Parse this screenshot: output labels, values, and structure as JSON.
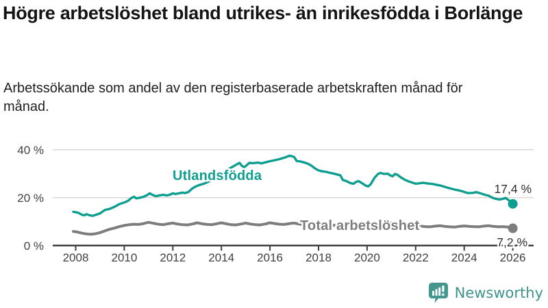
{
  "header": {
    "title": "Högre arbetslöshet bland utrikes- än inrikesfödda i Borlänge",
    "subtitle": "Arbetssökande som andel av den registerbaserade arbetskraften månad för månad."
  },
  "chart_data": {
    "type": "line",
    "unit": "%",
    "grid": true,
    "legend_position": "inline-labels-on-lines",
    "x_axis": {
      "range": [
        2007.85,
        2026.9
      ],
      "ticks": [
        2008,
        2010,
        2012,
        2014,
        2016,
        2018,
        2020,
        2022,
        2024,
        2026
      ]
    },
    "y_axis": {
      "range": [
        0,
        42
      ],
      "ticks": [
        {
          "value": 0,
          "label": "0 %"
        },
        {
          "value": 20,
          "label": "20 %"
        },
        {
          "value": 40,
          "label": "40 %"
        }
      ]
    },
    "series": [
      {
        "name": "Utlandsfödda",
        "color": "#0d9e8f",
        "end_label": "17,4 %",
        "end_value": 17.4,
        "points": [
          [
            2007.9,
            14.1
          ],
          [
            2008.0,
            13.9
          ],
          [
            2008.1,
            13.7
          ],
          [
            2008.25,
            12.9
          ],
          [
            2008.35,
            12.6
          ],
          [
            2008.45,
            13.1
          ],
          [
            2008.55,
            12.7
          ],
          [
            2008.7,
            12.4
          ],
          [
            2008.85,
            12.9
          ],
          [
            2009.0,
            13.4
          ],
          [
            2009.2,
            14.8
          ],
          [
            2009.4,
            15.3
          ],
          [
            2009.6,
            16.2
          ],
          [
            2009.8,
            17.3
          ],
          [
            2010.0,
            18.0
          ],
          [
            2010.15,
            18.6
          ],
          [
            2010.3,
            19.9
          ],
          [
            2010.4,
            20.4
          ],
          [
            2010.5,
            19.7
          ],
          [
            2010.65,
            20.0
          ],
          [
            2010.8,
            20.4
          ],
          [
            2010.95,
            21.1
          ],
          [
            2011.05,
            21.8
          ],
          [
            2011.15,
            21.2
          ],
          [
            2011.3,
            20.6
          ],
          [
            2011.45,
            20.9
          ],
          [
            2011.6,
            21.2
          ],
          [
            2011.75,
            20.9
          ],
          [
            2011.9,
            21.3
          ],
          [
            2012.0,
            21.8
          ],
          [
            2012.1,
            21.5
          ],
          [
            2012.25,
            21.8
          ],
          [
            2012.4,
            22.1
          ],
          [
            2012.5,
            21.9
          ],
          [
            2012.65,
            22.4
          ],
          [
            2012.8,
            23.8
          ],
          [
            2012.95,
            24.7
          ],
          [
            2013.1,
            25.3
          ],
          [
            2013.3,
            25.9
          ],
          [
            2013.5,
            26.8
          ],
          [
            2013.7,
            28.0
          ],
          [
            2013.9,
            29.3
          ],
          [
            2014.1,
            30.8
          ],
          [
            2014.3,
            32.0
          ],
          [
            2014.5,
            33.1
          ],
          [
            2014.65,
            34.0
          ],
          [
            2014.75,
            34.5
          ],
          [
            2014.85,
            33.2
          ],
          [
            2014.95,
            32.7
          ],
          [
            2015.05,
            33.6
          ],
          [
            2015.15,
            34.5
          ],
          [
            2015.3,
            34.4
          ],
          [
            2015.5,
            34.6
          ],
          [
            2015.65,
            34.3
          ],
          [
            2015.8,
            34.7
          ],
          [
            2016.0,
            35.2
          ],
          [
            2016.2,
            35.6
          ],
          [
            2016.4,
            36.1
          ],
          [
            2016.6,
            36.7
          ],
          [
            2016.8,
            37.5
          ],
          [
            2016.9,
            37.3
          ],
          [
            2017.0,
            36.9
          ],
          [
            2017.1,
            35.3
          ],
          [
            2017.25,
            35.1
          ],
          [
            2017.4,
            34.7
          ],
          [
            2017.55,
            34.2
          ],
          [
            2017.7,
            33.4
          ],
          [
            2017.85,
            32.2
          ],
          [
            2018.0,
            31.4
          ],
          [
            2018.15,
            31.0
          ],
          [
            2018.3,
            30.8
          ],
          [
            2018.45,
            30.4
          ],
          [
            2018.6,
            30.1
          ],
          [
            2018.75,
            29.7
          ],
          [
            2018.9,
            29.3
          ],
          [
            2019.0,
            27.4
          ],
          [
            2019.15,
            26.9
          ],
          [
            2019.3,
            26.1
          ],
          [
            2019.45,
            25.8
          ],
          [
            2019.55,
            26.6
          ],
          [
            2019.65,
            26.9
          ],
          [
            2019.8,
            26.0
          ],
          [
            2019.95,
            25.0
          ],
          [
            2020.05,
            24.7
          ],
          [
            2020.15,
            25.6
          ],
          [
            2020.3,
            28.2
          ],
          [
            2020.45,
            29.9
          ],
          [
            2020.55,
            30.3
          ],
          [
            2020.7,
            29.9
          ],
          [
            2020.85,
            30.0
          ],
          [
            2020.95,
            29.3
          ],
          [
            2021.05,
            28.9
          ],
          [
            2021.15,
            29.9
          ],
          [
            2021.25,
            29.5
          ],
          [
            2021.4,
            28.4
          ],
          [
            2021.55,
            27.5
          ],
          [
            2021.7,
            26.8
          ],
          [
            2021.85,
            26.3
          ],
          [
            2022.0,
            25.8
          ],
          [
            2022.15,
            26.0
          ],
          [
            2022.3,
            26.2
          ],
          [
            2022.5,
            25.9
          ],
          [
            2022.7,
            25.7
          ],
          [
            2022.85,
            25.4
          ],
          [
            2023.0,
            25.1
          ],
          [
            2023.2,
            24.5
          ],
          [
            2023.4,
            23.9
          ],
          [
            2023.6,
            23.4
          ],
          [
            2023.8,
            23.0
          ],
          [
            2024.0,
            22.4
          ],
          [
            2024.15,
            21.9
          ],
          [
            2024.35,
            22.0
          ],
          [
            2024.5,
            22.3
          ],
          [
            2024.7,
            21.7
          ],
          [
            2024.85,
            21.2
          ],
          [
            2025.0,
            20.8
          ],
          [
            2025.15,
            20.0
          ],
          [
            2025.3,
            19.5
          ],
          [
            2025.45,
            19.2
          ],
          [
            2025.6,
            19.5
          ],
          [
            2025.7,
            19.9
          ],
          [
            2025.8,
            19.2
          ],
          [
            2025.9,
            18.3
          ],
          [
            2026.0,
            17.4
          ]
        ]
      },
      {
        "name": "Total arbetslöshet",
        "color": "#7d7d7d",
        "end_label": "7,2 %",
        "end_value": 7.2,
        "points": [
          [
            2007.9,
            5.9
          ],
          [
            2008.05,
            5.7
          ],
          [
            2008.2,
            5.3
          ],
          [
            2008.4,
            4.9
          ],
          [
            2008.6,
            4.7
          ],
          [
            2008.8,
            4.9
          ],
          [
            2009.0,
            5.4
          ],
          [
            2009.2,
            6.1
          ],
          [
            2009.4,
            6.8
          ],
          [
            2009.6,
            7.3
          ],
          [
            2009.8,
            7.9
          ],
          [
            2010.0,
            8.4
          ],
          [
            2010.2,
            8.7
          ],
          [
            2010.4,
            8.9
          ],
          [
            2010.6,
            8.8
          ],
          [
            2010.8,
            9.2
          ],
          [
            2011.0,
            9.7
          ],
          [
            2011.2,
            9.3
          ],
          [
            2011.4,
            8.9
          ],
          [
            2011.6,
            8.7
          ],
          [
            2011.8,
            9.1
          ],
          [
            2012.0,
            9.4
          ],
          [
            2012.2,
            9.0
          ],
          [
            2012.4,
            8.7
          ],
          [
            2012.6,
            8.6
          ],
          [
            2012.8,
            9.0
          ],
          [
            2013.0,
            9.5
          ],
          [
            2013.2,
            9.1
          ],
          [
            2013.4,
            8.8
          ],
          [
            2013.6,
            8.7
          ],
          [
            2013.8,
            9.1
          ],
          [
            2014.0,
            9.5
          ],
          [
            2014.2,
            9.1
          ],
          [
            2014.4,
            8.7
          ],
          [
            2014.6,
            8.6
          ],
          [
            2014.8,
            9.0
          ],
          [
            2015.0,
            9.4
          ],
          [
            2015.2,
            9.0
          ],
          [
            2015.4,
            8.7
          ],
          [
            2015.6,
            8.6
          ],
          [
            2015.8,
            9.0
          ],
          [
            2016.0,
            9.5
          ],
          [
            2016.2,
            9.2
          ],
          [
            2016.4,
            8.9
          ],
          [
            2016.6,
            8.8
          ],
          [
            2016.8,
            9.2
          ],
          [
            2017.0,
            9.4
          ],
          [
            2017.2,
            9.0
          ],
          [
            2017.4,
            8.7
          ],
          [
            2017.6,
            8.5
          ],
          [
            2017.8,
            8.9
          ],
          [
            2018.0,
            9.2
          ],
          [
            2018.2,
            8.8
          ],
          [
            2018.4,
            8.5
          ],
          [
            2018.6,
            8.4
          ],
          [
            2018.8,
            8.7
          ],
          [
            2019.0,
            8.9
          ],
          [
            2019.2,
            8.5
          ],
          [
            2019.4,
            8.2
          ],
          [
            2019.6,
            8.2
          ],
          [
            2019.8,
            8.5
          ],
          [
            2020.0,
            8.6
          ],
          [
            2020.2,
            9.0
          ],
          [
            2020.4,
            9.4
          ],
          [
            2020.6,
            9.5
          ],
          [
            2020.8,
            9.3
          ],
          [
            2021.0,
            9.5
          ],
          [
            2021.2,
            9.2
          ],
          [
            2021.4,
            8.8
          ],
          [
            2021.6,
            8.6
          ],
          [
            2021.8,
            8.4
          ],
          [
            2022.0,
            8.5
          ],
          [
            2022.2,
            8.1
          ],
          [
            2022.4,
            7.9
          ],
          [
            2022.6,
            7.8
          ],
          [
            2022.8,
            8.1
          ],
          [
            2023.0,
            8.3
          ],
          [
            2023.2,
            8.0
          ],
          [
            2023.4,
            7.8
          ],
          [
            2023.6,
            7.7
          ],
          [
            2023.8,
            8.0
          ],
          [
            2024.0,
            8.2
          ],
          [
            2024.2,
            8.0
          ],
          [
            2024.4,
            7.9
          ],
          [
            2024.6,
            7.8
          ],
          [
            2024.8,
            8.1
          ],
          [
            2025.0,
            8.3
          ],
          [
            2025.2,
            8.0
          ],
          [
            2025.4,
            7.8
          ],
          [
            2025.6,
            7.9
          ],
          [
            2025.8,
            7.7
          ],
          [
            2026.0,
            7.2
          ]
        ]
      }
    ]
  },
  "branding": {
    "wordmark": "Newsworthy",
    "icon": "bar-chart-speech-bubble-icon",
    "color": "#3e948c"
  },
  "colors": {
    "accent_teal": "#0d9e8f",
    "series_gray": "#7d7d7d",
    "axis": "#3d3d3d",
    "gridline": "#d9d9d9",
    "axis_text": "#3f3f3f",
    "value_text": "#2e2e2e"
  }
}
